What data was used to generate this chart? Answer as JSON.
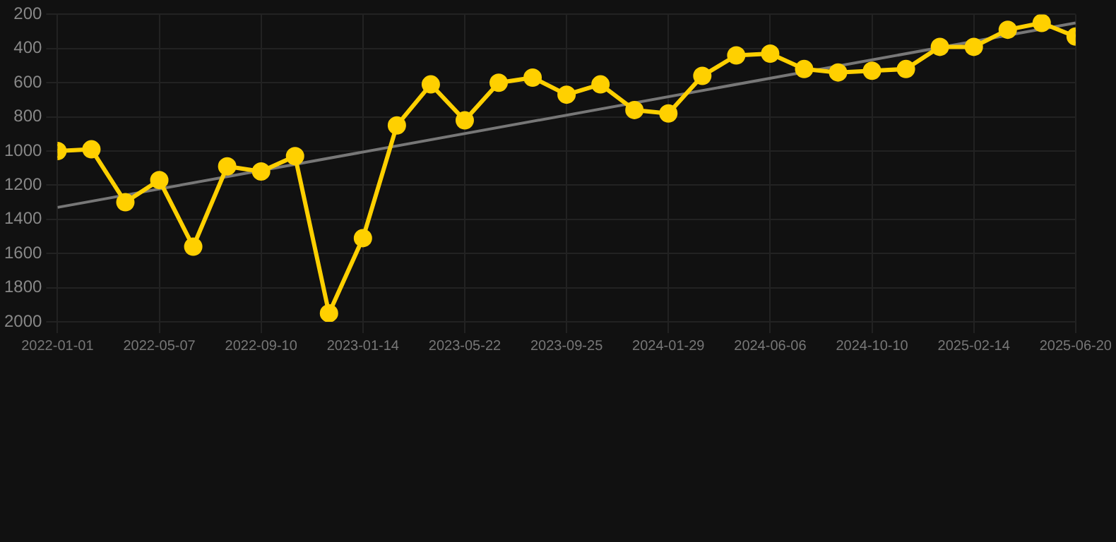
{
  "chart_data": {
    "type": "line",
    "categories": [
      "2022-01-01",
      null,
      null,
      "2022-05-07",
      null,
      null,
      "2022-09-10",
      null,
      null,
      "2023-01-14",
      null,
      null,
      "2023-05-22",
      null,
      null,
      "2023-09-25",
      null,
      null,
      "2024-01-29",
      null,
      null,
      "2024-06-06",
      null,
      null,
      "2024-10-10",
      null,
      null,
      "2025-02-14",
      null,
      null,
      "2025-06-20"
    ],
    "series": [
      {
        "color": "#ffd000",
        "values": [
          1000,
          990,
          1300,
          1170,
          1560,
          1090,
          1120,
          1030,
          1950,
          1510,
          850,
          610,
          820,
          600,
          570,
          670,
          610,
          760,
          780,
          560,
          440,
          430,
          520,
          540,
          530,
          520,
          390,
          390,
          290,
          250,
          330
        ]
      },
      {
        "type": "line",
        "color": "#777777",
        "marker": "none",
        "values": [
          1330,
          null,
          null,
          null,
          null,
          null,
          null,
          null,
          null,
          null,
          null,
          null,
          null,
          null,
          null,
          null,
          null,
          null,
          null,
          null,
          null,
          null,
          null,
          null,
          null,
          null,
          null,
          null,
          null,
          null,
          250
        ]
      }
    ],
    "ylim": [
      2000,
      200
    ],
    "yticks": [
      200,
      400,
      600,
      800,
      1000,
      1200,
      1400,
      1600,
      1800,
      2000
    ],
    "grid": true,
    "marker": "circle",
    "line_style": "solid",
    "legend": false
  }
}
